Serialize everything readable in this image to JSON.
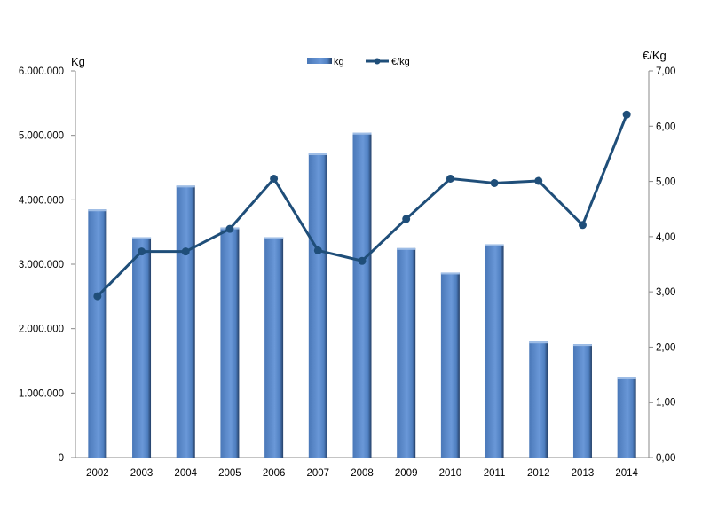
{
  "chart_data": {
    "type": "bar",
    "categories": [
      "2002",
      "2003",
      "2004",
      "2005",
      "2006",
      "2007",
      "2008",
      "2009",
      "2010",
      "2011",
      "2012",
      "2013",
      "2014"
    ],
    "series": [
      {
        "name": "kg",
        "type": "bar",
        "axis": "left",
        "color": "#4f81bd",
        "values": [
          3850000,
          3420000,
          4220000,
          3570000,
          3420000,
          4720000,
          5040000,
          3250000,
          2870000,
          3310000,
          1800000,
          1760000,
          1250000
        ]
      },
      {
        "name": "€/kg",
        "type": "line",
        "axis": "right",
        "color": "#1f4e79",
        "values": [
          2.92,
          3.73,
          3.73,
          4.14,
          5.05,
          3.75,
          3.56,
          4.32,
          5.05,
          4.97,
          5.01,
          4.21,
          6.21
        ]
      }
    ],
    "ylabel": "Kg",
    "y2label": "€/Kg",
    "ylim": [
      0,
      6000000
    ],
    "y2lim": [
      0,
      7
    ],
    "y_ticks": [
      "0",
      "1.000.000",
      "2.000.000",
      "3.000.000",
      "4.000.000",
      "5.000.000",
      "6.000.000"
    ],
    "y2_ticks": [
      "0,00",
      "1,00",
      "2,00",
      "3,00",
      "4,00",
      "5,00",
      "6,00",
      "7,00"
    ],
    "grid": false,
    "legend": "top-center"
  }
}
